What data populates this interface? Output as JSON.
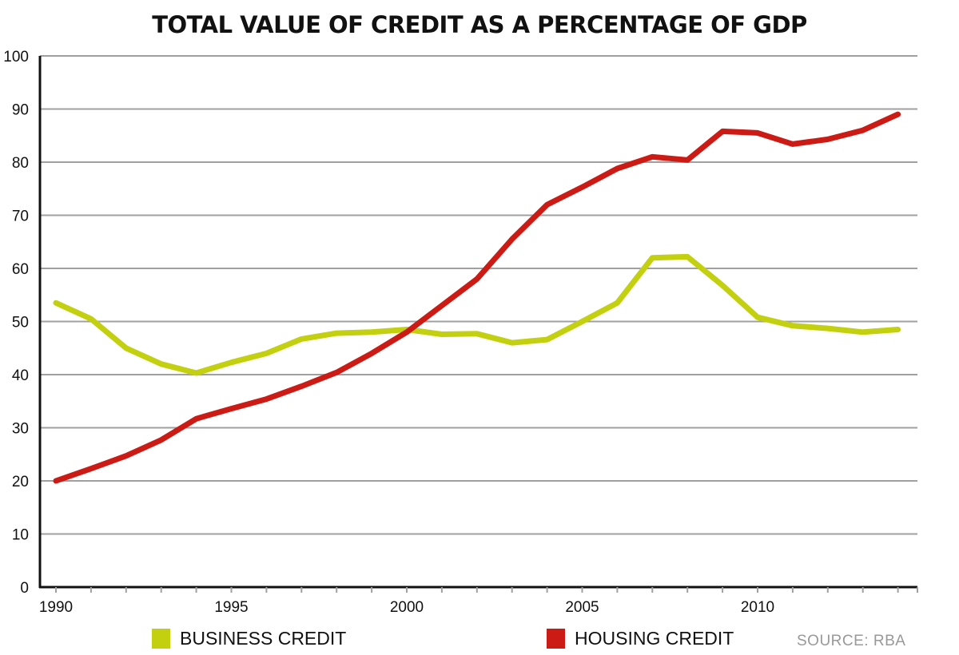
{
  "chart_data": {
    "type": "line",
    "title": "TOTAL VALUE OF CREDIT AS A PERCENTAGE OF GDP",
    "xlabel": "",
    "ylabel": "",
    "x": [
      1990,
      1991,
      1992,
      1993,
      1994,
      1995,
      1996,
      1997,
      1998,
      1999,
      2000,
      2001,
      2002,
      2003,
      2004,
      2005,
      2006,
      2007,
      2008,
      2009,
      2010,
      2011,
      2012,
      2013,
      2014
    ],
    "xlim": [
      1990,
      2014.5
    ],
    "ylim": [
      0,
      100
    ],
    "x_ticks": [
      "1990",
      "1995",
      "2000",
      "2005",
      "2010"
    ],
    "y_ticks": [
      "0",
      "10",
      "20",
      "30",
      "40",
      "50",
      "60",
      "70",
      "80",
      "90",
      "100"
    ],
    "grid": true,
    "legend_position": "bottom",
    "series": [
      {
        "name": "BUSINESS CREDIT",
        "color": "#c2d00f",
        "values": [
          53.5,
          50.5,
          45,
          42,
          40.3,
          42.3,
          44,
          46.7,
          47.8,
          48,
          48.5,
          47.6,
          47.7,
          46,
          46.6,
          50,
          53.5,
          62,
          62.2,
          56.8,
          50.8,
          49.2,
          48.7,
          48,
          48.5
        ]
      },
      {
        "name": "HOUSING CREDIT",
        "color": "#cc1a14",
        "values": [
          20,
          22.3,
          24.7,
          27.7,
          31.7,
          33.6,
          35.4,
          37.8,
          40.4,
          44,
          48,
          53,
          58,
          65.5,
          72,
          75.3,
          78.8,
          81,
          80.4,
          85.8,
          85.5,
          83.4,
          84.3,
          86,
          89
        ]
      }
    ],
    "source": "SOURCE: RBA"
  }
}
